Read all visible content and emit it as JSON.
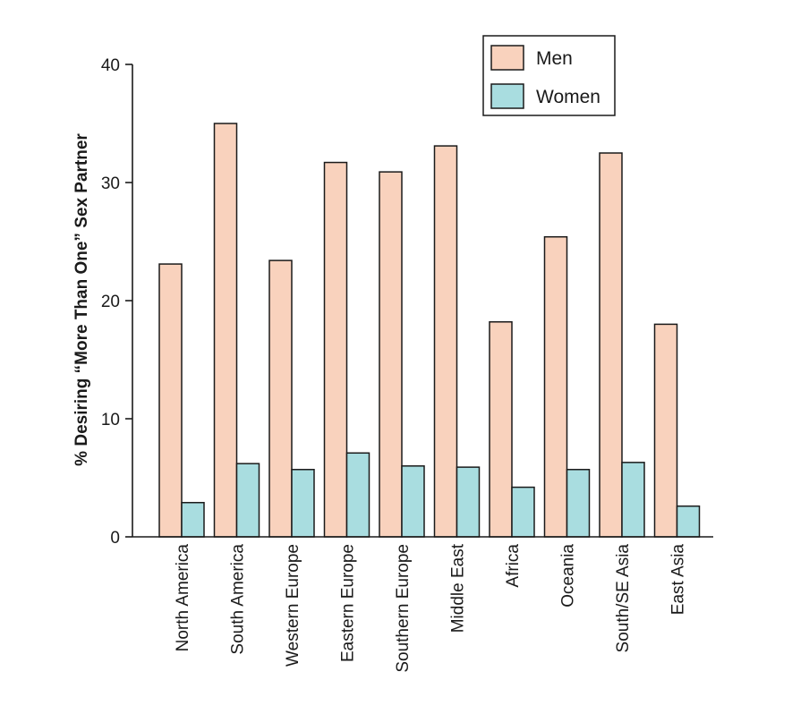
{
  "chart_data": {
    "type": "bar",
    "ylabel": "% Desiring “More Than One” Sex Partner",
    "xlabel": "",
    "ylim": [
      0,
      40
    ],
    "yticks": [
      0,
      10,
      20,
      30,
      40
    ],
    "categories": [
      "North America",
      "South America",
      "Western Europe",
      "Eastern Europe",
      "Southern Europe",
      "Middle East",
      "Africa",
      "Oceania",
      "South/SE Asia",
      "East Asia"
    ],
    "series": [
      {
        "name": "Men",
        "color": "#f9d2bd",
        "values": [
          23.1,
          35.0,
          23.4,
          31.7,
          30.9,
          33.1,
          18.2,
          25.4,
          32.5,
          18.0
        ]
      },
      {
        "name": "Women",
        "color": "#a9dde0",
        "values": [
          2.9,
          6.2,
          5.7,
          7.1,
          6.0,
          5.9,
          4.2,
          5.7,
          6.3,
          2.6
        ]
      }
    ],
    "legend": "top-right",
    "grid": false
  }
}
